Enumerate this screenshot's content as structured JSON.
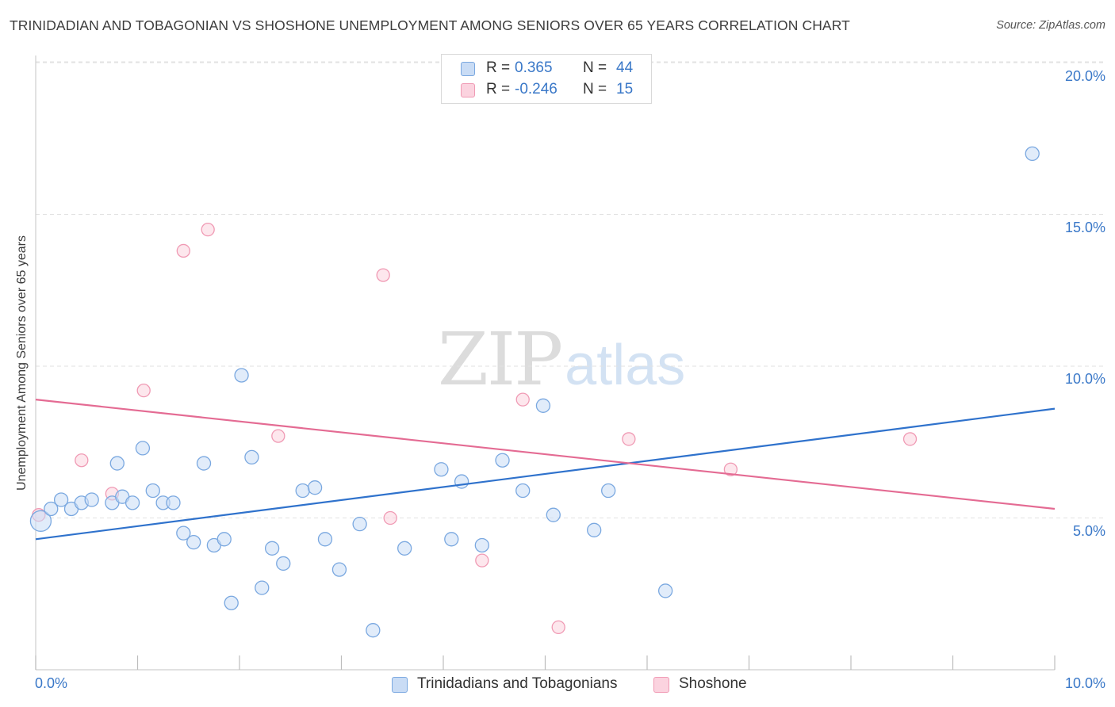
{
  "title": "TRINIDADIAN AND TOBAGONIAN VS SHOSHONE UNEMPLOYMENT AMONG SENIORS OVER 65 YEARS CORRELATION CHART",
  "source": "Source: ZipAtlas.com",
  "watermark": {
    "zip": "ZIP",
    "atlas": "atlas"
  },
  "legend": {
    "rows": [
      {
        "r_label": "R =",
        "r_value": "0.365",
        "n_label": "N =",
        "n_value": "44",
        "color": "#a8c8f0"
      },
      {
        "r_label": "R =",
        "r_value": "-0.246",
        "n_label": "N =",
        "n_value": "15",
        "color": "#f5b8ca"
      }
    ]
  },
  "bottom_legend": [
    {
      "label": "Trinidadians and Tobagonians",
      "color": "#a8c8f0"
    },
    {
      "label": "Shoshone",
      "color": "#f5b8ca"
    }
  ],
  "colors": {
    "blue_stroke": "#7aa8e0",
    "blue_fill": "#c9dcf5",
    "blue_line": "#2f72cc",
    "pink_stroke": "#f09ab4",
    "pink_fill": "#fbd3df",
    "pink_line": "#e46b93",
    "tick_text": "#3a78c8"
  },
  "chart_data": {
    "type": "scatter",
    "title": "TRINIDADIAN AND TOBAGONIAN VS SHOSHONE UNEMPLOYMENT AMONG SENIORS OVER 65 YEARS CORRELATION CHART",
    "xlabel": "",
    "ylabel": "Unemployment Among Seniors over 65 years",
    "xlim": [
      0,
      10
    ],
    "ylim": [
      0,
      20.5
    ],
    "x_tick_labels": [
      "0.0%",
      "10.0%"
    ],
    "y_ticks": [
      5,
      10,
      15,
      20
    ],
    "y_tick_labels": [
      "5.0%",
      "10.0%",
      "15.0%",
      "20.0%"
    ],
    "grid": true,
    "legend_position": "top-center",
    "series": [
      {
        "name": "Trinidadians and Tobagonians",
        "color": "#a8c8f0",
        "points": [
          [
            0.05,
            4.9
          ],
          [
            0.15,
            5.3
          ],
          [
            0.35,
            5.3
          ],
          [
            0.25,
            5.6
          ],
          [
            0.45,
            5.5
          ],
          [
            0.55,
            5.6
          ],
          [
            0.75,
            5.5
          ],
          [
            0.85,
            5.7
          ],
          [
            0.95,
            5.5
          ],
          [
            1.05,
            7.3
          ],
          [
            1.15,
            5.9
          ],
          [
            1.25,
            5.5
          ],
          [
            1.35,
            5.5
          ],
          [
            1.45,
            4.5
          ],
          [
            1.55,
            4.2
          ],
          [
            1.65,
            6.8
          ],
          [
            1.75,
            4.1
          ],
          [
            1.85,
            4.3
          ],
          [
            1.92,
            2.2
          ],
          [
            2.02,
            9.7
          ],
          [
            2.12,
            7.0
          ],
          [
            2.22,
            2.7
          ],
          [
            2.32,
            4.0
          ],
          [
            2.43,
            3.5
          ],
          [
            2.62,
            5.9
          ],
          [
            2.74,
            6.0
          ],
          [
            2.84,
            4.3
          ],
          [
            2.98,
            3.3
          ],
          [
            3.18,
            4.8
          ],
          [
            3.31,
            1.3
          ],
          [
            3.62,
            4.0
          ],
          [
            3.98,
            6.6
          ],
          [
            4.08,
            4.3
          ],
          [
            4.18,
            6.2
          ],
          [
            4.38,
            4.1
          ],
          [
            4.58,
            6.9
          ],
          [
            4.78,
            5.9
          ],
          [
            4.98,
            8.7
          ],
          [
            5.08,
            5.1
          ],
          [
            5.48,
            4.6
          ],
          [
            5.62,
            5.9
          ],
          [
            6.18,
            2.6
          ],
          [
            9.78,
            17.0
          ],
          [
            0.8,
            6.8
          ]
        ],
        "trend": {
          "x": [
            0,
            10
          ],
          "y": [
            4.3,
            8.6
          ]
        }
      },
      {
        "name": "Shoshone",
        "color": "#f5b8ca",
        "points": [
          [
            0.03,
            5.1
          ],
          [
            0.45,
            6.9
          ],
          [
            0.75,
            5.8
          ],
          [
            1.06,
            9.2
          ],
          [
            1.45,
            13.8
          ],
          [
            1.69,
            14.5
          ],
          [
            2.38,
            7.7
          ],
          [
            3.41,
            13.0
          ],
          [
            3.48,
            5.0
          ],
          [
            4.38,
            3.6
          ],
          [
            4.78,
            8.9
          ],
          [
            5.13,
            1.4
          ],
          [
            5.82,
            7.6
          ],
          [
            6.82,
            6.6
          ],
          [
            8.58,
            7.6
          ]
        ],
        "trend": {
          "x": [
            0,
            10
          ],
          "y": [
            8.9,
            5.3
          ]
        }
      }
    ]
  }
}
